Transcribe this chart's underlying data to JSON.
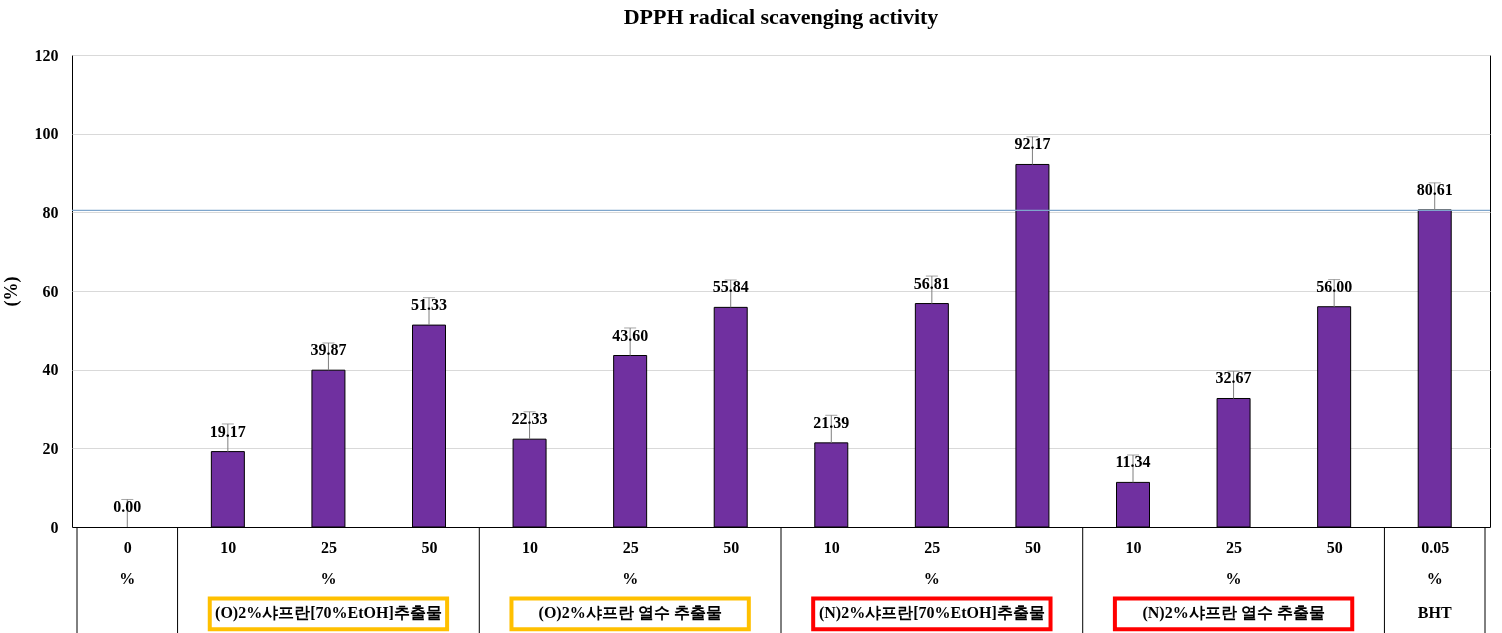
{
  "chart_data": {
    "type": "bar",
    "title": "DPPH radical scavenging activity",
    "ylabel": "(%)",
    "categories": [
      "0",
      "10",
      "25",
      "50",
      "10",
      "25",
      "50",
      "10",
      "25",
      "50",
      "10",
      "25",
      "50",
      "0.05"
    ],
    "values": [
      0.0,
      19.17,
      39.87,
      51.33,
      22.33,
      43.6,
      55.84,
      21.39,
      56.81,
      92.17,
      11.34,
      32.67,
      56.0,
      80.61
    ],
    "errors": [
      [
        0,
        7
      ],
      [
        19.17,
        26.2
      ],
      [
        39.87,
        46.8
      ],
      [
        51.33,
        58.3
      ],
      [
        22.33,
        29.3
      ],
      [
        43.6,
        50.6
      ],
      [
        55.84,
        62.8
      ],
      [
        21.39,
        28.4
      ],
      [
        56.81,
        63.8
      ],
      [
        92.17,
        99.2
      ],
      [
        11.34,
        18.3
      ],
      [
        32.67,
        39.6
      ],
      [
        56.0,
        62.9
      ],
      [
        80.61,
        87.5
      ]
    ],
    "color": "#7030a0",
    "value_labels": [
      "0.00",
      "19.17",
      "39.87",
      "51.33",
      "22.33",
      "43.60",
      "55.84",
      "21.39",
      "56.81",
      "92.17",
      "11.34",
      "32.67",
      "56.00",
      "80.61"
    ],
    "ylim": [
      0,
      120
    ],
    "yticks": [
      0,
      20,
      40,
      60,
      80,
      100,
      120
    ],
    "grid": "y",
    "ref_lines": [
      {
        "axis": "y",
        "value": 80.5,
        "color": "#7fa6cc"
      }
    ],
    "annotations": [
      "%",
      "%",
      "%",
      "%",
      "%",
      "%",
      "(O)2%샤프란[70%EtOH]추출물",
      "(O)2%샤프란 열수 추출물",
      "(N)2%샤프란[70%EtOH]추출물",
      "(N)2%샤프란 열수 추출물",
      "BHT"
    ]
  }
}
